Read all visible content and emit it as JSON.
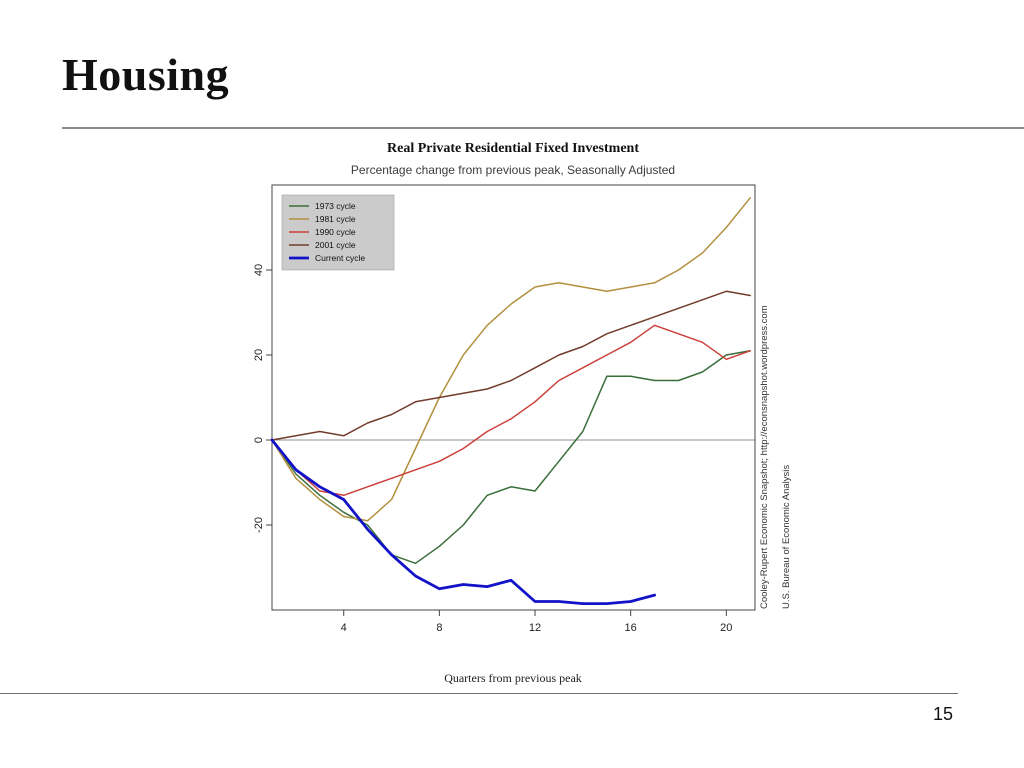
{
  "slide": {
    "title": "Housing",
    "page_number": "15"
  },
  "chart_data": {
    "type": "line",
    "title": "Real Private Residential Fixed Investment",
    "subtitle": "Percentage change from previous peak, Seasonally Adjusted",
    "xlabel": "Quarters from previous peak",
    "ylabel": "",
    "xlim": [
      1,
      21.2
    ],
    "ylim": [
      -40,
      60
    ],
    "x_ticks": [
      4,
      8,
      12,
      16,
      20
    ],
    "y_ticks": [
      -20,
      0,
      20,
      40
    ],
    "zero_line": 0,
    "grid": false,
    "legend_position": "top-left",
    "quarters": [
      1,
      2,
      3,
      4,
      5,
      6,
      7,
      8,
      9,
      10,
      11,
      12,
      13,
      14,
      15,
      16,
      17,
      18,
      19,
      20,
      21
    ],
    "series": [
      {
        "name": "1973 cycle",
        "color": "#3a6e3a",
        "width": 1.5,
        "values": [
          0,
          -8,
          -13,
          -17,
          -20,
          -27,
          -29,
          -25,
          -20,
          -13,
          -11,
          -12,
          -5,
          2,
          15,
          15,
          14,
          14,
          16,
          20,
          21
        ]
      },
      {
        "name": "1981 cycle",
        "color": "#b3903f",
        "width": 1.5,
        "values": [
          0,
          -9,
          -14,
          -18,
          -19,
          -14,
          -2,
          10,
          20,
          27,
          32,
          36,
          37,
          36,
          35,
          36,
          37,
          40,
          44,
          50,
          57
        ]
      },
      {
        "name": "1990 cycle",
        "color": "#cc403a",
        "width": 1.5,
        "values": [
          0,
          -7,
          -12,
          -13,
          -11,
          -9,
          -7,
          -5,
          -2,
          2,
          5,
          9,
          14,
          17,
          20,
          23,
          27,
          25,
          23,
          19,
          21
        ]
      },
      {
        "name": "2001 cycle",
        "color": "#723c2c",
        "width": 1.5,
        "values": [
          0,
          1,
          2,
          1,
          4,
          6,
          9,
          10,
          11,
          12,
          14,
          17,
          20,
          22,
          25,
          27,
          29,
          31,
          33,
          35,
          34
        ]
      },
      {
        "name": "Current cycle",
        "color": "#1212c8",
        "width": 2.8,
        "values": [
          0,
          -7,
          -11,
          -14,
          -21,
          -27,
          -32,
          -35,
          -34,
          -34.5,
          -33,
          -38,
          -38,
          -38.5,
          -38.5,
          -38,
          -36.5
        ]
      }
    ],
    "sources": [
      "Cooley-Rupert Economic Snapshot; http://econsnapshot.wordpress.com",
      "U.S. Bureau of Economic Analysis"
    ]
  }
}
